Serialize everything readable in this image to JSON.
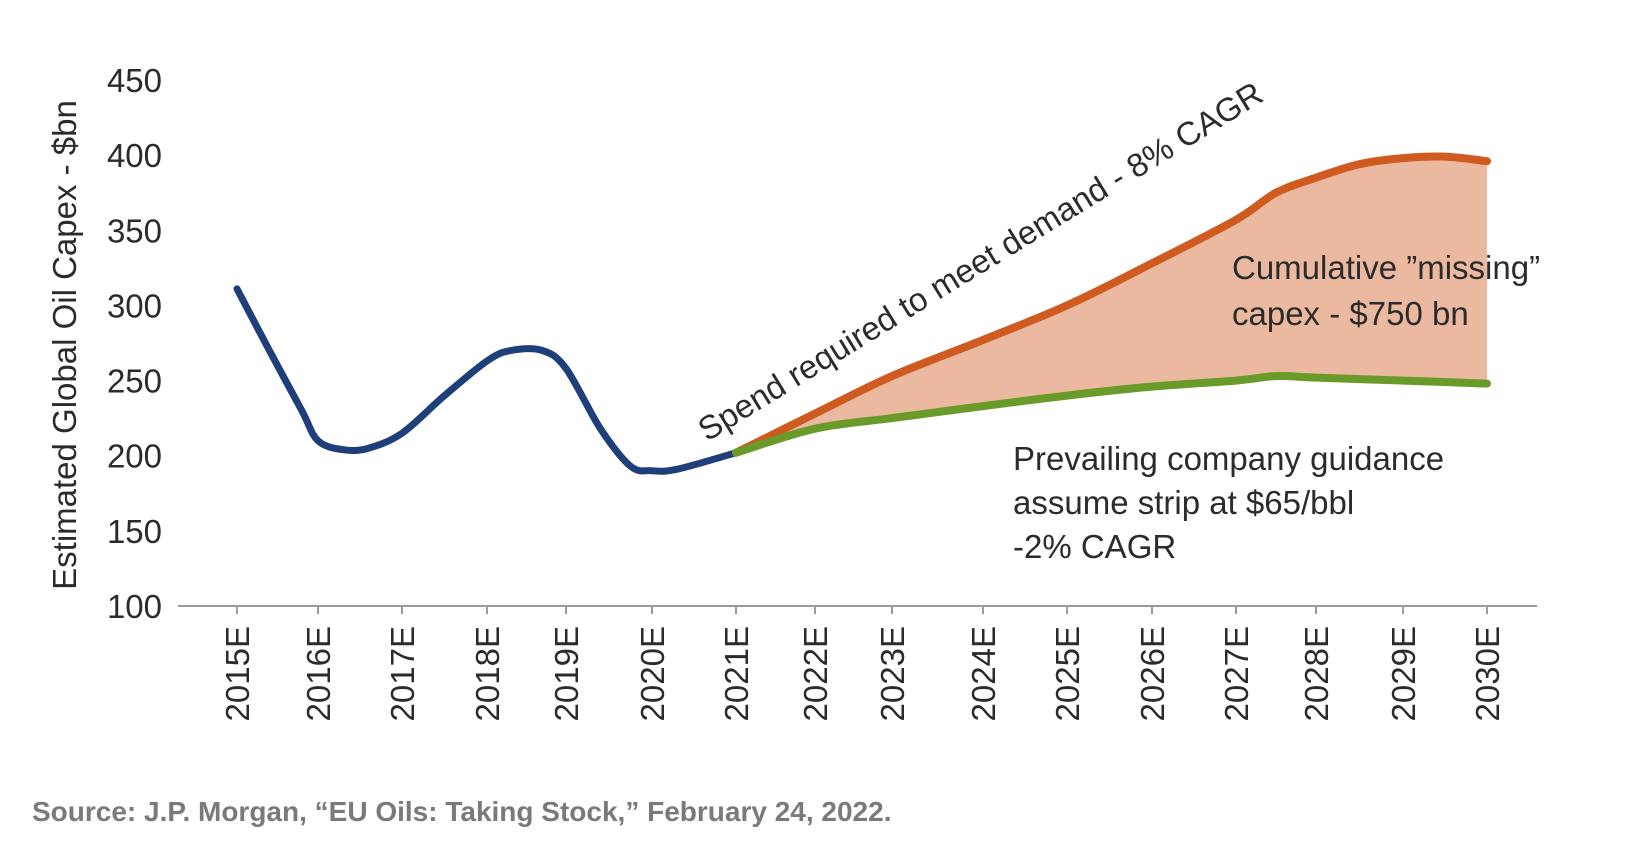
{
  "chart_data": {
    "type": "line",
    "ylabel": "Estimated Global Oil Capex - $bn",
    "ylim": [
      100,
      450
    ],
    "yticks": [
      100,
      150,
      200,
      250,
      300,
      350,
      400,
      450
    ],
    "categories": [
      "2015E",
      "2016E",
      "2017E",
      "2018E",
      "2019E",
      "2020E",
      "2021E",
      "2022E",
      "2023E",
      "2024E",
      "2025E",
      "2026E",
      "2027E",
      "2028E",
      "2029E",
      "2030E"
    ],
    "series": [
      {
        "name": "",
        "color": "#1f3f7a",
        "x": [
          2015.0,
          2015.4,
          2015.8,
          2016.0,
          2016.3,
          2016.6,
          2017.0,
          2017.5,
          2018.0,
          2018.3,
          2018.7,
          2019.0,
          2019.4,
          2019.75,
          2020.0,
          2020.3,
          2021.0
        ],
        "values": [
          311,
          270,
          230,
          210,
          204,
          205,
          215,
          240,
          263,
          270,
          270,
          258,
          218,
          193,
          190,
          191,
          202
        ]
      },
      {
        "name": "Spend required to meet demand - 8% CAGR",
        "color": "#d05b20",
        "x": [
          2021.0,
          2022.0,
          2023.0,
          2024.0,
          2025.0,
          2026.0,
          2027.0,
          2027.5,
          2028.0,
          2028.5,
          2029.0,
          2029.5,
          2030.0
        ],
        "values": [
          202,
          228,
          253,
          277,
          300,
          328,
          357,
          375,
          385,
          394,
          398,
          399,
          396
        ]
      },
      {
        "name": "Prevailing company guidance assume strip at $65/bbl -2% CAGR",
        "color": "#6a9a2a",
        "x": [
          2021.0,
          2022.0,
          2023.0,
          2024.0,
          2025.0,
          2026.0,
          2027.0,
          2027.5,
          2028.0,
          2029.0,
          2030.0
        ],
        "values": [
          202,
          218,
          225,
          233,
          240,
          246,
          250,
          253,
          252,
          250,
          248
        ]
      }
    ],
    "fill_between": {
      "color": "#ebb8a0",
      "label_line1": "Cumulative ”missing”",
      "label_line2": "capex - $750 bn"
    },
    "annotations": {
      "demand_label": "Spend required to meet demand - 8% CAGR",
      "guidance_line1": "Prevailing company guidance",
      "guidance_line2": "assume strip at $65/bbl",
      "guidance_line3": "-2% CAGR"
    },
    "grid": false,
    "legend": "none"
  },
  "source": "Source: J.P. Morgan, “EU Oils: Taking Stock,” February 24, 2022."
}
